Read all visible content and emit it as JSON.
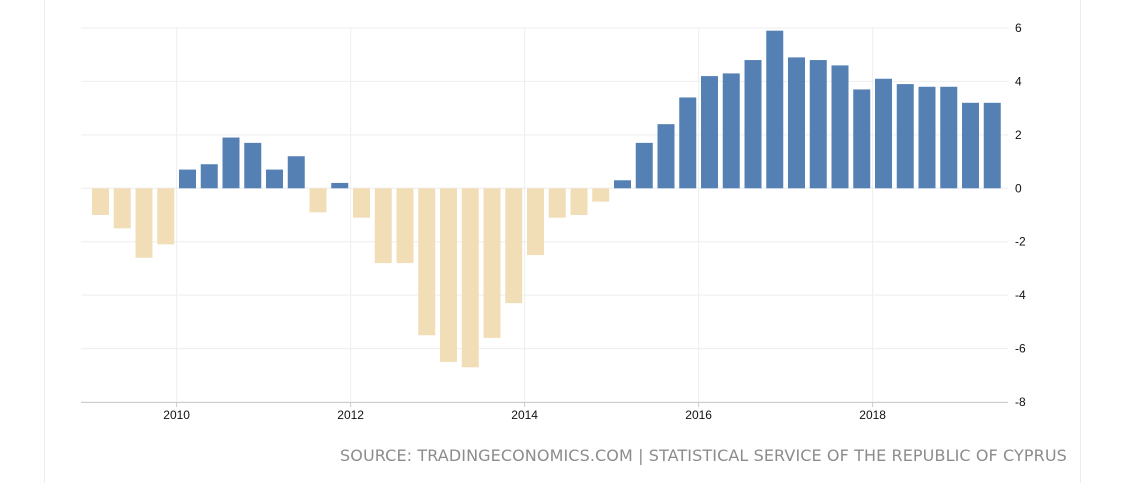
{
  "chart_data": {
    "type": "bar",
    "title": "",
    "xlabel": "",
    "ylabel": "",
    "ylim": [
      -8,
      6
    ],
    "yticks": [
      6,
      4,
      2,
      0,
      -2,
      -4,
      -6,
      -8
    ],
    "ytick_labels": [
      "6",
      "4",
      "2",
      "0",
      "-2",
      "-4",
      "-6",
      "-8"
    ],
    "xtick_labels": [
      {
        "label": "2010",
        "year": 2010
      },
      {
        "label": "2012",
        "year": 2012
      },
      {
        "label": "2014",
        "year": 2014
      },
      {
        "label": "2016",
        "year": 2016
      },
      {
        "label": "2018",
        "year": 2018
      }
    ],
    "start_year": 2009,
    "periods_per_year": 4,
    "categories": [
      "2009 Q1",
      "2009 Q2",
      "2009 Q3",
      "2009 Q4",
      "2010 Q1",
      "2010 Q2",
      "2010 Q3",
      "2010 Q4",
      "2011 Q1",
      "2011 Q2",
      "2011 Q3",
      "2011 Q4",
      "2012 Q1",
      "2012 Q2",
      "2012 Q3",
      "2012 Q4",
      "2013 Q1",
      "2013 Q2",
      "2013 Q3",
      "2013 Q4",
      "2014 Q1",
      "2014 Q2",
      "2014 Q3",
      "2014 Q4",
      "2015 Q1",
      "2015 Q2",
      "2015 Q3",
      "2015 Q4",
      "2016 Q1",
      "2016 Q2",
      "2016 Q3",
      "2016 Q4",
      "2017 Q1",
      "2017 Q2",
      "2017 Q3",
      "2017 Q4",
      "2018 Q1",
      "2018 Q2",
      "2018 Q3",
      "2018 Q4",
      "2019 Q1",
      "2019 Q2"
    ],
    "values": [
      -1.0,
      -1.5,
      -2.6,
      -2.1,
      0.7,
      0.9,
      1.9,
      1.7,
      0.7,
      1.2,
      -0.9,
      0.2,
      -1.1,
      -2.8,
      -2.8,
      -5.5,
      -6.5,
      -6.7,
      -5.6,
      -4.3,
      -2.5,
      -1.1,
      -1.0,
      -0.5,
      0.3,
      1.7,
      2.4,
      3.4,
      4.2,
      4.3,
      4.8,
      5.9,
      4.9,
      4.8,
      4.6,
      3.7,
      4.1,
      3.9,
      3.8,
      3.8,
      3.2,
      3.2
    ],
    "colors": {
      "positive": "#5580b4",
      "negative": "#f1ddb6",
      "grid": "#eeeeee",
      "axis": "#cccccc"
    },
    "source": "SOURCE: TRADINGECONOMICS.COM | STATISTICAL SERVICE OF THE REPUBLIC OF CYPRUS"
  }
}
